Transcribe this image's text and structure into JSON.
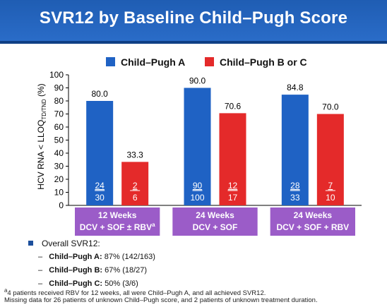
{
  "title": "SVR12 by Baseline Child–Pugh Score",
  "colors": {
    "banner": "#2462be",
    "seriesA": "#1f62c4",
    "seriesB": "#e42a2a",
    "groupBox": "#9b5cc8"
  },
  "legend": [
    {
      "label": "Child–Pugh A",
      "color": "#1f62c4"
    },
    {
      "label": "Child–Pugh B or C",
      "color": "#e42a2a"
    }
  ],
  "chart_data": {
    "type": "bar",
    "ylabel": "HCV RNA < LLOQ",
    "ylabel_sub": "TD/TND",
    "ylabel_unit": " (%)",
    "ylim": [
      0,
      100
    ],
    "yticks": [
      0,
      10,
      20,
      30,
      40,
      50,
      60,
      70,
      80,
      90,
      100
    ],
    "categories": [
      {
        "line1": "12 Weeks",
        "line2": "DCV + SOF ± RBV",
        "sup": "a"
      },
      {
        "line1": "24 Weeks",
        "line2": "DCV + SOF",
        "sup": ""
      },
      {
        "line1": "24 Weeks",
        "line2": "DCV + SOF + RBV",
        "sup": ""
      }
    ],
    "series": [
      {
        "name": "Child–Pugh A",
        "color": "#1f62c4",
        "values": [
          80.0,
          90.0,
          84.8
        ],
        "labels": [
          "80.0",
          "90.0",
          "84.8"
        ],
        "numerators": [
          "24",
          "90",
          "28"
        ],
        "denominators": [
          "30",
          "100",
          "33"
        ]
      },
      {
        "name": "Child–Pugh B or C",
        "color": "#e42a2a",
        "values": [
          33.3,
          70.6,
          70.0
        ],
        "labels": [
          "33.3",
          "70.6",
          "70.0"
        ],
        "numerators": [
          "2",
          "12",
          "7"
        ],
        "denominators": [
          "6",
          "17",
          "10"
        ]
      }
    ],
    "grid": false
  },
  "notes": {
    "overall_label": "Overall SVR12:",
    "items": [
      {
        "dash": "–",
        "label": "Child–Pugh A:",
        "value": "87% (142/163)"
      },
      {
        "dash": "–",
        "label": "Child–Pugh B:",
        "value": "67% (18/27)"
      },
      {
        "dash": "–",
        "label": "Child–Pugh C:",
        "value": "50% (3/6)"
      }
    ]
  },
  "footnotes": [
    {
      "sup": "a",
      "text": "4 patients received RBV for 12 weeks, all were Child–Pugh A, and all achieved SVR12."
    },
    {
      "sup": "",
      "text": "Missing data for 26 patients of unknown Child–Pugh score, and 2 patients of unknown treatment duration."
    }
  ]
}
